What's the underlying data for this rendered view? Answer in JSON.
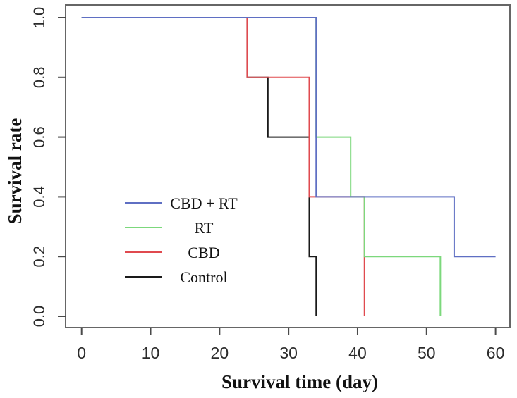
{
  "chart_data": {
    "type": "line",
    "subtype": "kaplan-meier-step",
    "title": "",
    "xlabel": "Survival time (day)",
    "ylabel": "Survival rate",
    "xlim": [
      0,
      60
    ],
    "ylim": [
      0.0,
      1.0
    ],
    "grid": false,
    "legend_position": "inside-left-middle",
    "x_ticks": [
      {
        "v": 0,
        "label": "0"
      },
      {
        "v": 10,
        "label": "10"
      },
      {
        "v": 20,
        "label": "20"
      },
      {
        "v": 30,
        "label": "30"
      },
      {
        "v": 40,
        "label": "40"
      },
      {
        "v": 50,
        "label": "50"
      },
      {
        "v": 60,
        "label": "60"
      }
    ],
    "y_ticks": [
      {
        "v": 0.0,
        "label": "0.0"
      },
      {
        "v": 0.2,
        "label": "0.2"
      },
      {
        "v": 0.4,
        "label": "0.4"
      },
      {
        "v": 0.6,
        "label": "0.6"
      },
      {
        "v": 0.8,
        "label": "0.8"
      },
      {
        "v": 1.0,
        "label": "1.0"
      }
    ],
    "series": [
      {
        "name": "CBD + RT",
        "color": "#5f6fc3",
        "steps": [
          [
            0,
            1.0
          ],
          [
            34,
            0.4
          ],
          [
            54,
            0.2
          ]
        ],
        "end_time": 60,
        "end_state": "censored-at-plot-end"
      },
      {
        "name": "RT",
        "color": "#7cd87c",
        "steps": [
          [
            0,
            1.0
          ],
          [
            34,
            0.6
          ],
          [
            39,
            0.4
          ],
          [
            41,
            0.2
          ],
          [
            52,
            0.0
          ]
        ],
        "end_time": 52,
        "end_state": "all-events"
      },
      {
        "name": "CBD",
        "color": "#e04a4f",
        "steps": [
          [
            0,
            1.0
          ],
          [
            24,
            0.8
          ],
          [
            33,
            0.4
          ],
          [
            41,
            0.0
          ]
        ],
        "end_time": 41,
        "end_state": "all-events"
      },
      {
        "name": "Control",
        "color": "#1a1a1a",
        "steps": [
          [
            0,
            1.0
          ],
          [
            24,
            0.8
          ],
          [
            27,
            0.6
          ],
          [
            33,
            0.2
          ],
          [
            34,
            0.0
          ]
        ],
        "end_time": 34,
        "end_state": "all-events"
      }
    ],
    "colors": {
      "plot_border": "#666666",
      "tick": "#4a4a4a",
      "background": "#ffffff"
    }
  }
}
